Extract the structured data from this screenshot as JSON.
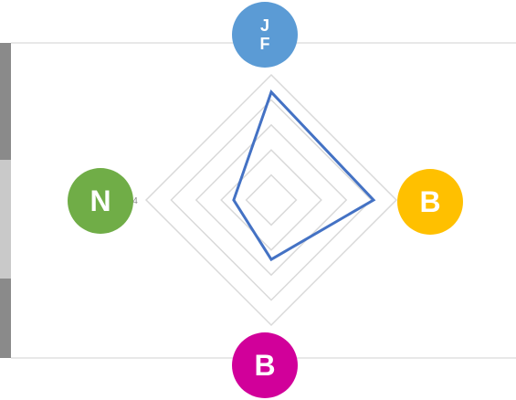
{
  "chart_data": {
    "type": "radar",
    "categories": [
      "J\nF",
      "B",
      "B",
      "N"
    ],
    "category_colors": [
      "#5b9bd5",
      "#ffc000",
      "#d1009a",
      "#70ad47"
    ],
    "series": [
      {
        "color": "#4472c4",
        "values": [
          3.45,
          3.27,
          1.9,
          1.2
        ]
      }
    ],
    "ylim": [
      0,
      4
    ],
    "yticks": [
      4
    ],
    "grid_levels": 5
  }
}
